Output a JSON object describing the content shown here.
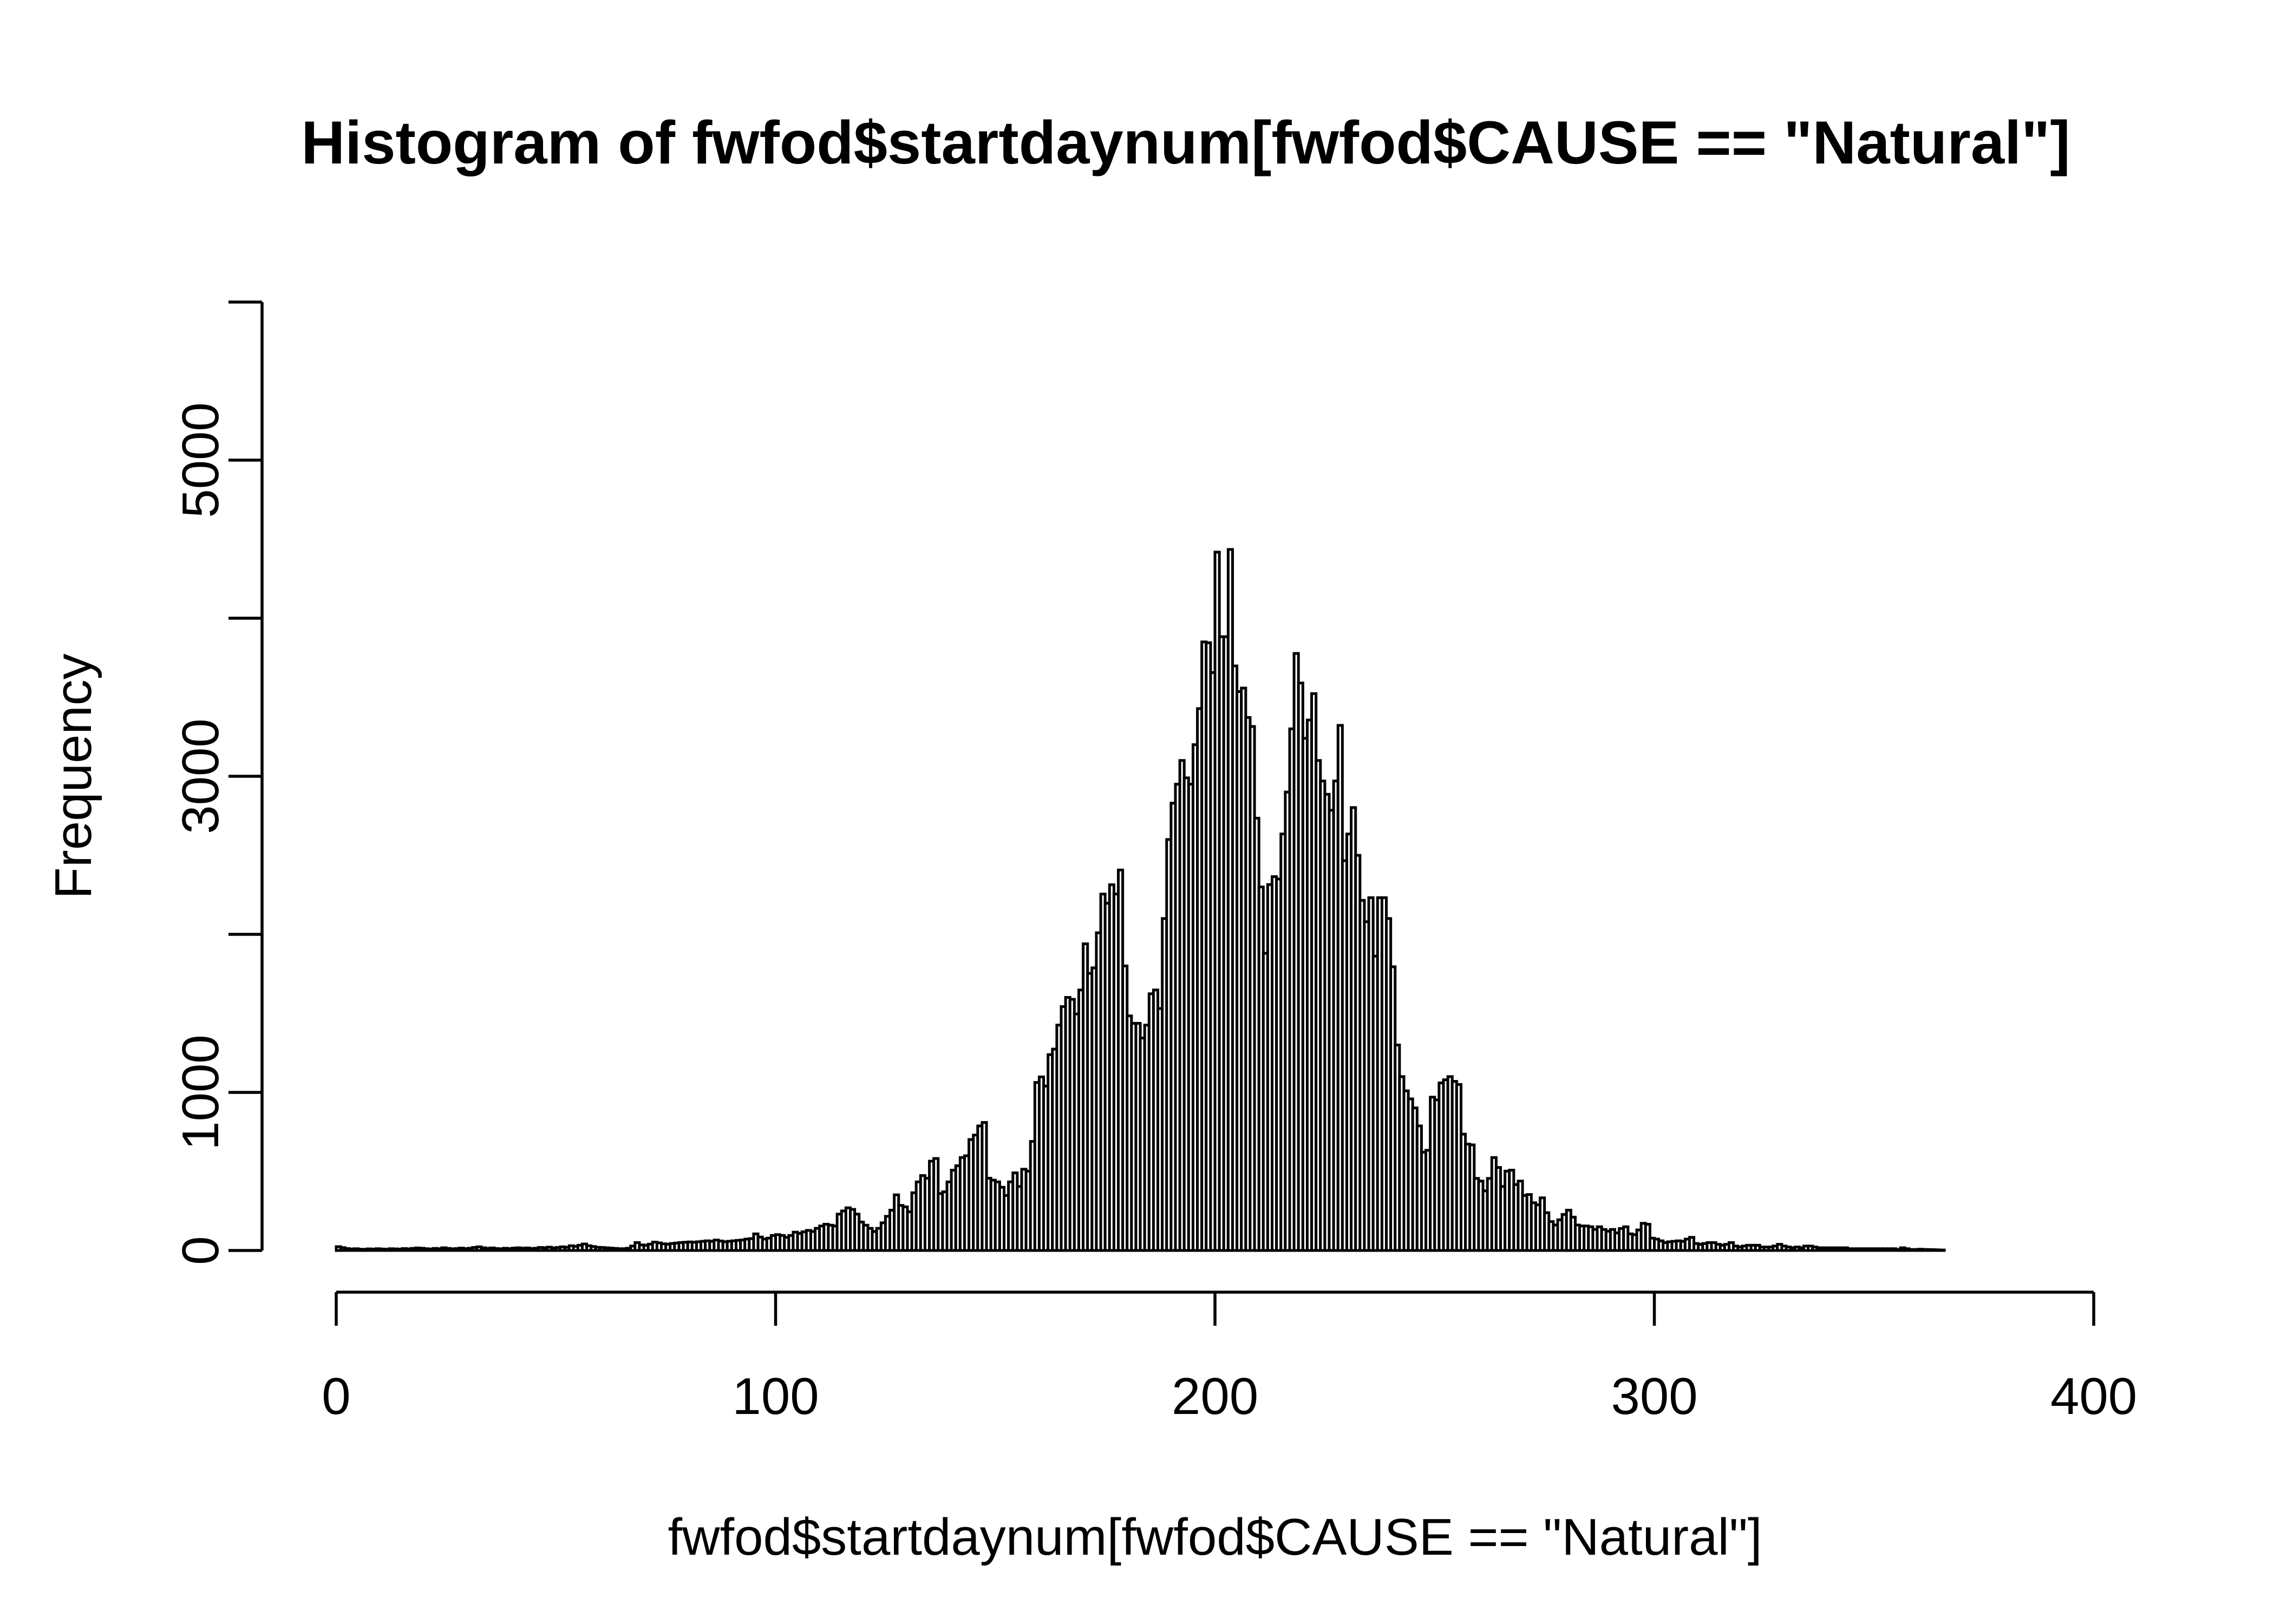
{
  "chart_data": {
    "type": "bar",
    "subtype": "histogram",
    "title": "Histogram of fwfod$startdaynum[fwfod$CAUSE == \"Natural\"]",
    "xlabel": "fwfod$startdaynum[fwfod$CAUSE == \"Natural\"]",
    "ylabel": "Frequency",
    "bin_start": 0,
    "bin_width": 1,
    "xlim": [
      0,
      400
    ],
    "ylim": [
      0,
      6000
    ],
    "x_ticks": [
      0,
      100,
      200,
      300,
      400
    ],
    "y_ticks": [
      0,
      1000,
      2000,
      3000,
      4000,
      5000,
      6000
    ],
    "y_tick_labels": [
      "0",
      "1000",
      "",
      "3000",
      "",
      "5000",
      ""
    ],
    "grid": false,
    "legend": false,
    "bar_fill": "#ffffff",
    "bar_border": "#000000",
    "background": "#ffffff",
    "values": [
      24,
      18,
      12,
      9,
      11,
      8,
      7,
      10,
      8,
      11,
      9,
      7,
      11,
      10,
      8,
      12,
      10,
      13,
      16,
      14,
      11,
      9,
      13,
      11,
      17,
      13,
      10,
      12,
      15,
      11,
      14,
      19,
      23,
      17,
      13,
      16,
      12,
      10,
      14,
      11,
      15,
      17,
      14,
      16,
      12,
      14,
      19,
      17,
      21,
      15,
      19,
      23,
      20,
      30,
      26,
      33,
      41,
      30,
      25,
      20,
      19,
      17,
      15,
      13,
      11,
      11,
      14,
      28,
      50,
      35,
      33,
      40,
      53,
      48,
      42,
      40,
      44,
      47,
      50,
      52,
      54,
      52,
      55,
      58,
      61,
      58,
      66,
      60,
      55,
      58,
      61,
      64,
      66,
      72,
      75,
      105,
      85,
      72,
      78,
      95,
      100,
      95,
      83,
      95,
      116,
      108,
      118,
      127,
      120,
      140,
      155,
      166,
      160,
      155,
      230,
      250,
      270,
      260,
      230,
      180,
      160,
      140,
      120,
      140,
      175,
      216,
      255,
      352,
      285,
      276,
      245,
      365,
      434,
      474,
      457,
      565,
      582,
      360,
      371,
      434,
      508,
      536,
      588,
      599,
      702,
      730,
      788,
      810,
      457,
      445,
      434,
      400,
      348,
      434,
      491,
      405,
      514,
      502,
      690,
      1063,
      1098,
      1040,
      1239,
      1274,
      1426,
      1543,
      1601,
      1589,
      1496,
      1648,
      1940,
      1753,
      1788,
      2010,
      2255,
      2197,
      2314,
      2255,
      2407,
      1800,
      1484,
      1437,
      1437,
      1344,
      1426,
      1624,
      1648,
      1531,
      2100,
      2600,
      2830,
      2950,
      3100,
      2990,
      2950,
      3200,
      3428,
      3850,
      3845,
      3656,
      4418,
      3883,
      3883,
      4435,
      3698,
      3536,
      3558,
      3372,
      3315,
      2735,
      2300,
      1880,
      2315,
      2365,
      2350,
      2635,
      2900,
      3300,
      3777,
      3590,
      3240,
      3356,
      3523,
      3100,
      2970,
      2886,
      2785,
      2970,
      3322,
      2466,
      2635,
      2802,
      2500,
      2215,
      2080,
      2232,
      1862,
      2232,
      2232,
      2100,
      1795,
      1300,
      1100,
      1010,
      959,
      902,
      788,
      622,
      634,
      970,
      953,
      1060,
      1080,
      1100,
      1070,
      1050,
      736,
      673,
      668,
      456,
      439,
      377,
      456,
      588,
      525,
      405,
      502,
      508,
      417,
      439,
      348,
      354,
      302,
      289,
      333,
      239,
      183,
      161,
      194,
      228,
      255,
      211,
      161,
      155,
      155,
      150,
      133,
      150,
      133,
      122,
      133,
      111,
      139,
      150,
      105,
      100,
      130,
      172,
      166,
      78,
      72,
      61,
      50,
      55,
      58,
      61,
      58,
      72,
      83,
      44,
      39,
      44,
      50,
      50,
      39,
      33,
      39,
      50,
      28,
      22,
      28,
      33,
      33,
      33,
      22,
      22,
      22,
      28,
      39,
      28,
      22,
      17,
      22,
      17,
      28,
      28,
      22,
      17,
      17,
      17,
      17,
      17,
      17,
      17,
      11,
      11,
      11,
      11,
      11,
      11,
      11,
      11,
      11,
      11,
      11,
      6,
      17,
      11,
      6,
      6,
      8,
      6,
      6,
      5,
      4,
      3
    ]
  }
}
